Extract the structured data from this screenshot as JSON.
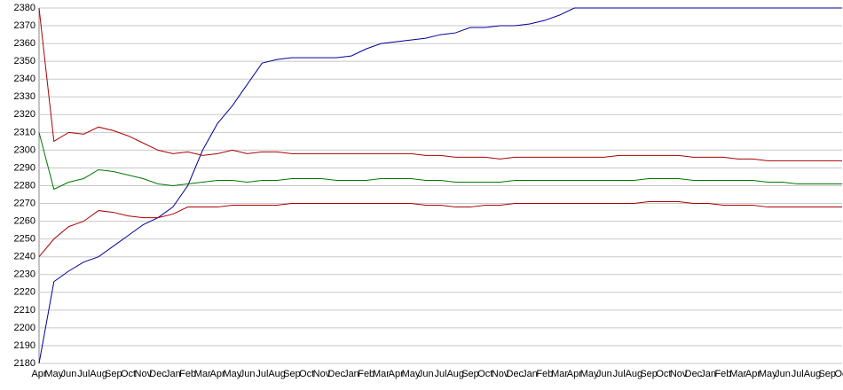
{
  "chart_data": {
    "type": "line",
    "categories": [
      "Apr",
      "May",
      "Jun",
      "Jul",
      "Aug",
      "Sep",
      "Oct",
      "Nov",
      "Dec",
      "Jan",
      "Feb",
      "Mar",
      "Apr",
      "May",
      "Jun",
      "Jul",
      "Aug",
      "Sep",
      "Oct",
      "Nov",
      "Dec",
      "Jan",
      "Feb",
      "Mar",
      "Apr",
      "May",
      "Jun",
      "Jul",
      "Aug",
      "Sep",
      "Oct",
      "Nov",
      "Dec",
      "Jan",
      "Feb",
      "Mar",
      "Apr",
      "May",
      "Jun",
      "Jul",
      "Aug",
      "Sep",
      "Oct",
      "Nov",
      "Dec",
      "Jan",
      "Feb",
      "Mar",
      "Apr",
      "May",
      "Jun",
      "Jul",
      "Aug",
      "Sep",
      "Oct"
    ],
    "series": [
      {
        "color": "#000099",
        "values": [
          2180,
          2226,
          2232,
          2237,
          2240,
          2246,
          2252,
          2258,
          2262,
          2268,
          2280,
          2300,
          2315,
          2325,
          2337,
          2349,
          2351,
          2352,
          2352,
          2352,
          2352,
          2353,
          2357,
          2360,
          2361,
          2362,
          2363,
          2365,
          2366,
          2369,
          2369,
          2370,
          2370,
          2371,
          2373,
          2376,
          2380,
          2380,
          2380,
          2380,
          2380,
          2380,
          2380,
          2380,
          2380,
          2380,
          2380,
          2380,
          2380,
          2380,
          2380,
          2380,
          2380,
          2380,
          2380
        ]
      },
      {
        "color": "#aa0000",
        "values": [
          2380,
          2305,
          2310,
          2309,
          2313,
          2311,
          2308,
          2304,
          2300,
          2298,
          2299,
          2297,
          2298,
          2300,
          2298,
          2299,
          2299,
          2298,
          2298,
          2298,
          2298,
          2298,
          2298,
          2298,
          2298,
          2298,
          2297,
          2297,
          2296,
          2296,
          2296,
          2295,
          2296,
          2296,
          2296,
          2296,
          2296,
          2296,
          2296,
          2297,
          2297,
          2297,
          2297,
          2297,
          2296,
          2296,
          2296,
          2295,
          2295,
          2294,
          2294,
          2294,
          2294,
          2294,
          2294
        ]
      },
      {
        "color": "#007700",
        "values": [
          2310,
          2278,
          2282,
          2284,
          2289,
          2288,
          2286,
          2284,
          2281,
          2280,
          2281,
          2282,
          2283,
          2283,
          2282,
          2283,
          2283,
          2284,
          2284,
          2284,
          2283,
          2283,
          2283,
          2284,
          2284,
          2284,
          2283,
          2283,
          2282,
          2282,
          2282,
          2282,
          2283,
          2283,
          2283,
          2283,
          2283,
          2283,
          2283,
          2283,
          2283,
          2284,
          2284,
          2284,
          2283,
          2283,
          2283,
          2283,
          2283,
          2282,
          2282,
          2281,
          2281,
          2281,
          2281
        ]
      },
      {
        "color": "#aa0000",
        "values": [
          2240,
          2250,
          2257,
          2260,
          2266,
          2265,
          2263,
          2262,
          2262,
          2264,
          2268,
          2268,
          2268,
          2269,
          2269,
          2269,
          2269,
          2270,
          2270,
          2270,
          2270,
          2270,
          2270,
          2270,
          2270,
          2270,
          2269,
          2269,
          2268,
          2268,
          2269,
          2269,
          2270,
          2270,
          2270,
          2270,
          2270,
          2270,
          2270,
          2270,
          2270,
          2271,
          2271,
          2271,
          2270,
          2270,
          2269,
          2269,
          2269,
          2268,
          2268,
          2268,
          2268,
          2268,
          2268
        ]
      }
    ],
    "ylim": [
      2180,
      2380
    ],
    "yticks": [
      2180,
      2190,
      2200,
      2210,
      2220,
      2230,
      2240,
      2250,
      2260,
      2270,
      2280,
      2290,
      2300,
      2310,
      2320,
      2330,
      2340,
      2350,
      2360,
      2370,
      2380
    ],
    "grid": true
  }
}
